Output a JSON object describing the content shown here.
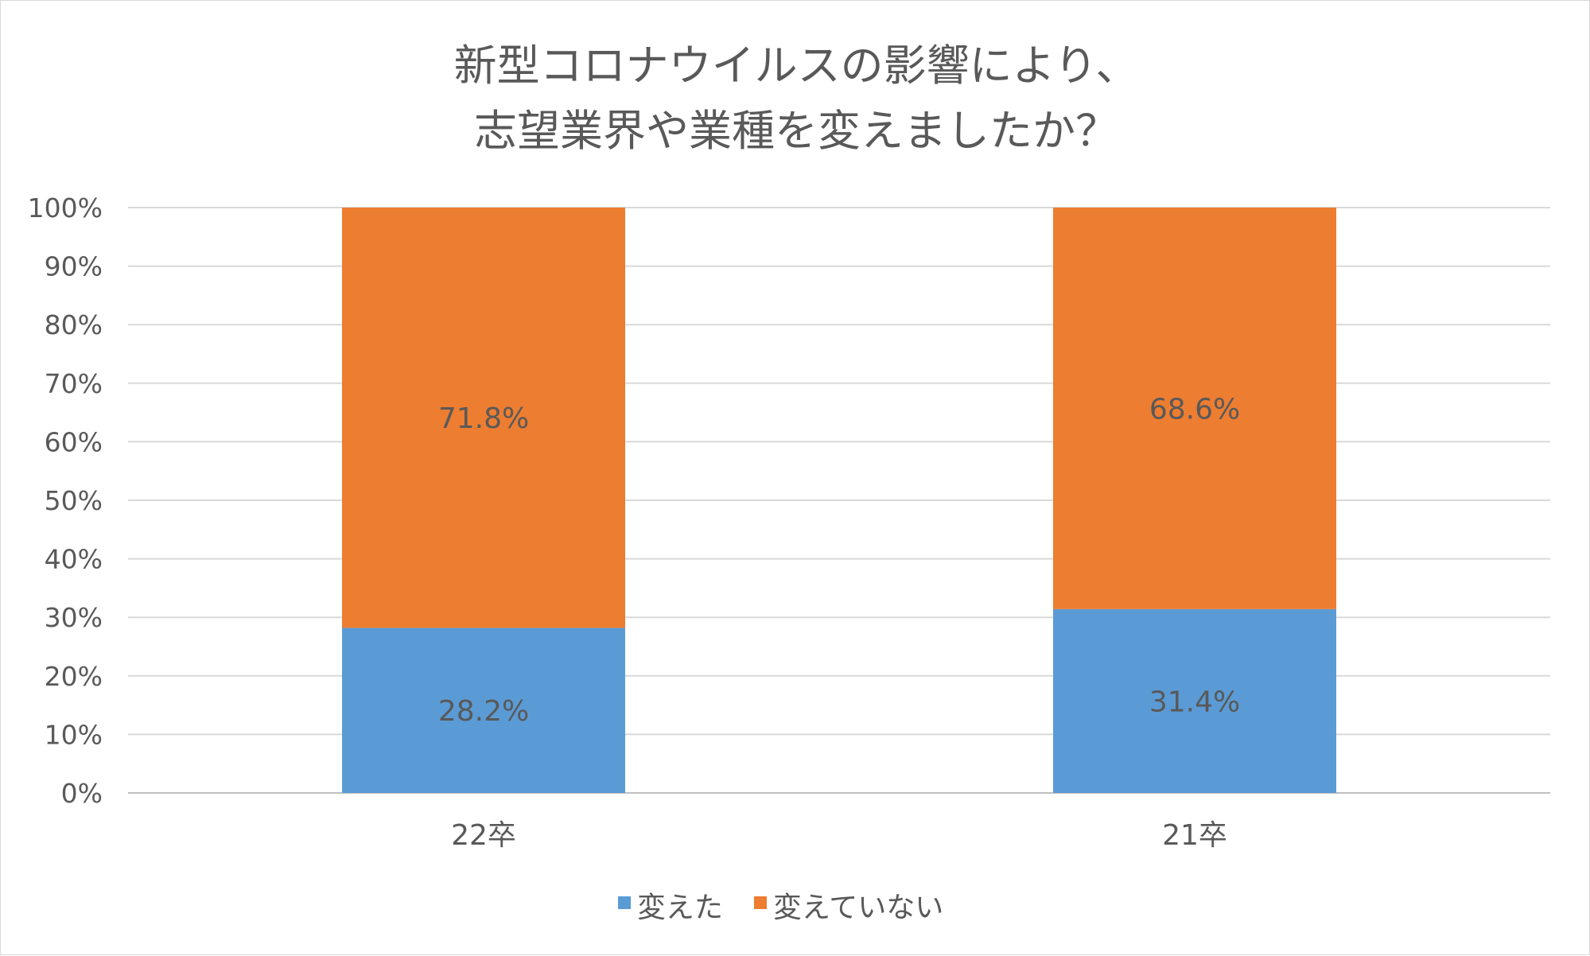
{
  "chart_data": {
    "type": "bar",
    "stacked": true,
    "percent_stacked": true,
    "title_lines": [
      "新型コロナウイルスの影響により、",
      "志望業界や業種を変えましたか？"
    ],
    "categories": [
      "22卒",
      "21卒"
    ],
    "series": [
      {
        "name": "変えた",
        "values": [
          28.2,
          31.4
        ],
        "color": "#5b9bd5",
        "data_labels": [
          "28.2%",
          "31.4%"
        ]
      },
      {
        "name": "変えていない",
        "values": [
          71.8,
          68.6
        ],
        "color": "#ed7d31",
        "data_labels": [
          "71.8%",
          "68.6%"
        ]
      }
    ],
    "ylim": [
      0,
      100
    ],
    "y_ticks": [
      "0%",
      "10%",
      "20%",
      "30%",
      "40%",
      "50%",
      "60%",
      "70%",
      "80%",
      "90%",
      "100%"
    ],
    "grid": true,
    "legend_position": "bottom"
  }
}
